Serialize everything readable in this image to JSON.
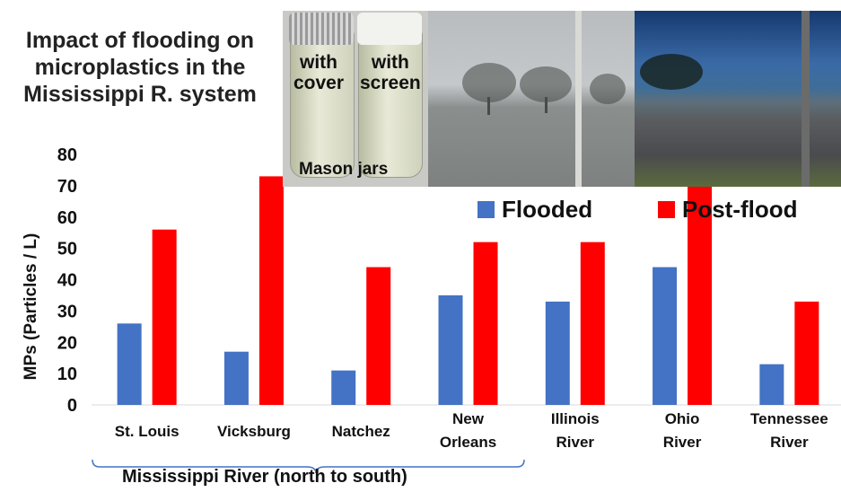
{
  "title_lines": [
    "Impact of flooding on",
    "microplastics in the",
    "Mississippi R. system"
  ],
  "photos": {
    "jars": {
      "left_label": [
        "with",
        "cover"
      ],
      "right_label": [
        "with",
        "screen"
      ],
      "caption": "Mason jars"
    }
  },
  "chart_data": {
    "type": "bar",
    "categories": [
      [
        "St. Louis"
      ],
      [
        "Vicksburg"
      ],
      [
        "Natchez"
      ],
      [
        "New",
        "Orleans"
      ],
      [
        "Illinois",
        "River"
      ],
      [
        "Ohio",
        "River"
      ],
      [
        "Tennessee",
        "River"
      ]
    ],
    "series": [
      {
        "name": "Flooded",
        "color": "#4472c4",
        "values": [
          26,
          17,
          11,
          35,
          33,
          44,
          13
        ]
      },
      {
        "name": "Post-flood",
        "color": "#ff0000",
        "values": [
          56,
          73,
          44,
          52,
          52,
          77,
          33
        ]
      }
    ],
    "ylabel": "MPs (Particles / L)",
    "ylim": [
      0,
      80
    ],
    "yticks": [
      0,
      10,
      20,
      30,
      40,
      50,
      60,
      70,
      80
    ],
    "grid": false,
    "legend_position": "top-right",
    "group_annotation": "Mississippi River (north to south)"
  }
}
